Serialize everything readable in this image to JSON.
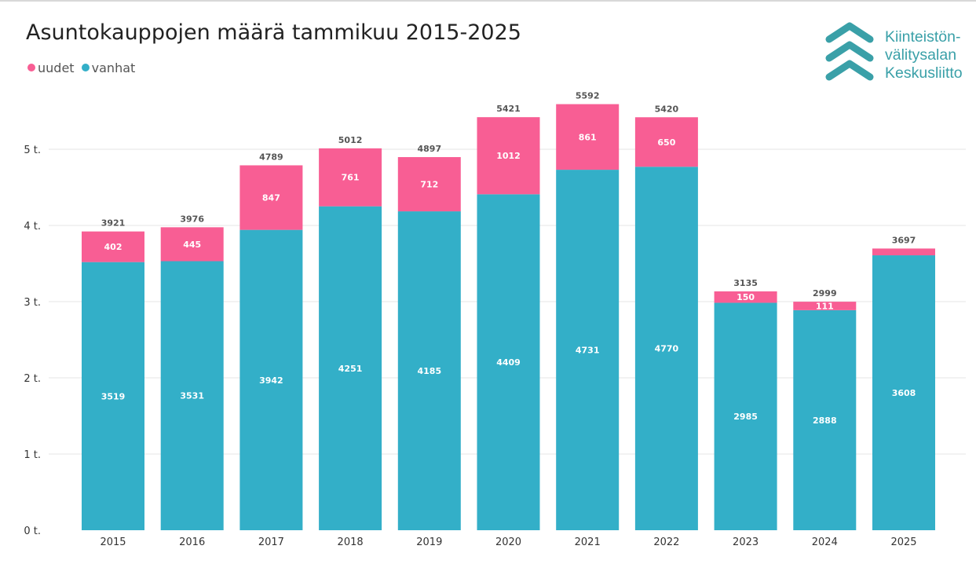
{
  "chart_data": {
    "type": "bar",
    "stacked": true,
    "title": "Asuntokauppojen määrä tammikuu 2015-2025",
    "categories": [
      "2015",
      "2016",
      "2017",
      "2018",
      "2019",
      "2020",
      "2021",
      "2022",
      "2023",
      "2024",
      "2025"
    ],
    "series": [
      {
        "name": "vanhat",
        "color": "#33afc8",
        "values": [
          3519,
          3531,
          3942,
          4251,
          4185,
          4409,
          4731,
          4770,
          2985,
          2888,
          3608
        ]
      },
      {
        "name": "uudet",
        "color": "#f85e94",
        "values": [
          402,
          445,
          847,
          761,
          712,
          1012,
          861,
          650,
          150,
          111,
          89
        ]
      }
    ],
    "totals": [
      3921,
      3976,
      4789,
      5012,
      4897,
      5421,
      5592,
      5420,
      3135,
      2999,
      3697
    ],
    "segment_labels": {
      "vanhat": [
        "3519",
        "3531",
        "3942",
        "4251",
        "4185",
        "4409",
        "4731",
        "4770",
        "2985",
        "2888",
        "3608"
      ],
      "uudet": [
        "402",
        "445",
        "847",
        "761",
        "712",
        "1012",
        "861",
        "650",
        "150",
        "111",
        ""
      ]
    },
    "ylim": [
      0,
      5800
    ],
    "yticks": [
      0,
      1000,
      2000,
      3000,
      4000,
      5000
    ],
    "ytick_labels": [
      "0 t.",
      "1 t.",
      "2 t.",
      "3 t.",
      "4 t.",
      "5 t."
    ],
    "grid": true,
    "legend_position": "top-left",
    "xlabel": "",
    "ylabel": ""
  },
  "legend": {
    "items": [
      {
        "label": "uudet",
        "color": "#f85e94"
      },
      {
        "label": "vanhat",
        "color": "#33afc8"
      }
    ]
  },
  "logo": {
    "icon": "double-chevron-up-icon",
    "color": "#3aa0a8",
    "lines": [
      "Kiinteistön-",
      "välitysalan",
      "Keskusliitto"
    ]
  }
}
